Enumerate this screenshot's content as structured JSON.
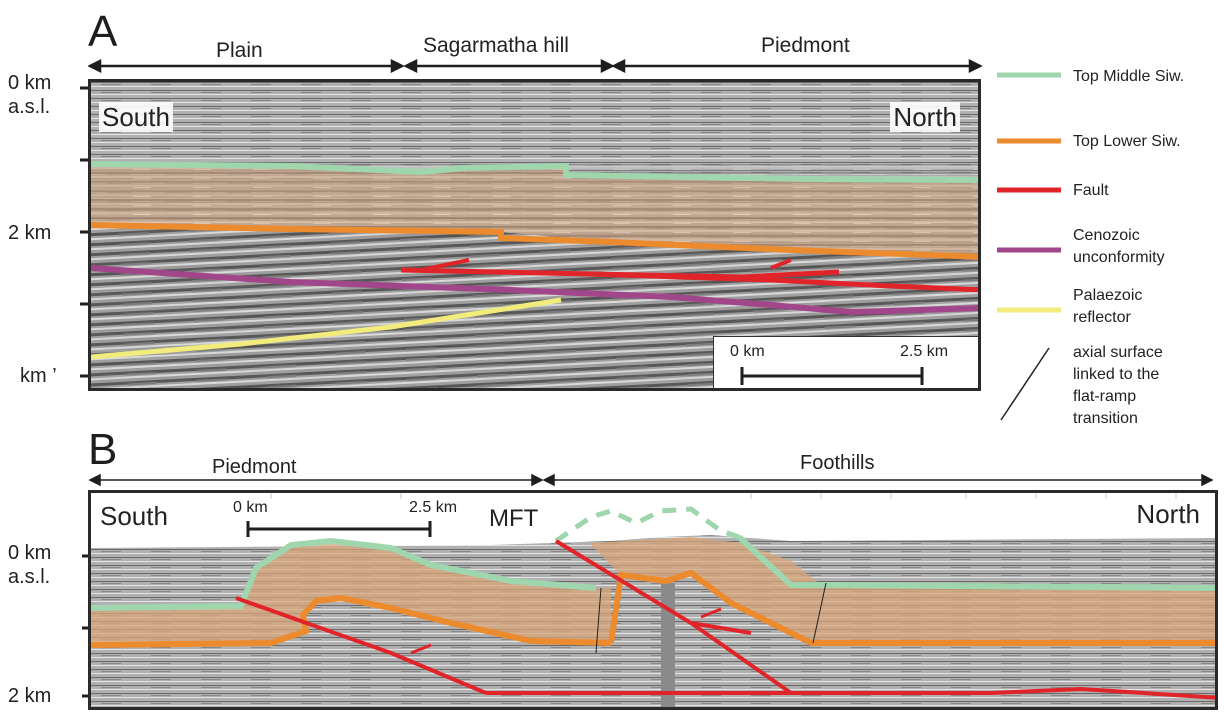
{
  "panel_a": {
    "letter": "A",
    "regions": [
      "Plain",
      "Sagarmatha hill",
      "Piedmont"
    ],
    "depth_labels": [
      "0 km",
      "a.s.l.",
      "2 km",
      "km ’"
    ],
    "south": "South",
    "north": "North",
    "scale": {
      "start": "0 km",
      "end": "2.5 km"
    }
  },
  "panel_b": {
    "letter": "B",
    "regions": [
      "Piedmont",
      "Foothills"
    ],
    "depth_labels": [
      "0 km",
      "a.s.l.",
      "2 km"
    ],
    "south": "South",
    "north": "North",
    "mft": "MFT",
    "scale": {
      "start": "0 km",
      "end": "2.5 km"
    }
  },
  "legend": [
    {
      "label": "Top Middle Siw.",
      "color": "#9fd6ad"
    },
    {
      "label": "Top Lower Siw.",
      "color": "#ec8a2e"
    },
    {
      "label": "Fault",
      "color": "#e0242a"
    },
    {
      "label": "Cenozoic unconformity",
      "color": "#a2468b"
    },
    {
      "label": "Palaezoic reflector",
      "color": "#f2ec7c"
    },
    {
      "label": "axial surface linked to the flat-ramp transition",
      "color": "#222222"
    }
  ],
  "colors": {
    "middle_siw": "#9fd6ad",
    "lower_siw": "#ec8a2e",
    "lower_fill": "#d9a57a",
    "fault": "#e0242a",
    "cenozoic": "#a2468b",
    "palaeozoic": "#f2ec7c",
    "seismic": "#9a9a9a"
  }
}
